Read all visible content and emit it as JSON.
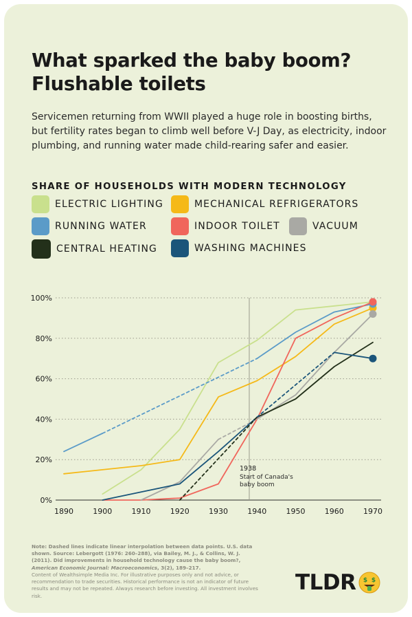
{
  "title": "What sparked the baby boom? Flushable toilets",
  "subtitle": "Servicemen returning from WWII played a huge role in boosting births, but fertility rates began to climb well before V-J Day, as electricity, indoor plumbing, and running water made child-rearing safer and easier.",
  "legend_title": "SHARE OF HOUSEHOLDS WITH MODERN TECHNOLOGY",
  "colors": {
    "electric_lighting": "#c9e08d",
    "mechanical_refrigerators": "#f5b918",
    "running_water": "#5b9bc8",
    "indoor_toilet": "#f0665c",
    "vacuum": "#a9a9a4",
    "central_heating": "#23301a",
    "washing_machines": "#1b557a",
    "background": "#ecf1da"
  },
  "chart_data": {
    "type": "line",
    "xlim": [
      1890,
      1970
    ],
    "ylim": [
      0,
      100
    ],
    "x_ticks": [
      "1890",
      "1900",
      "1910",
      "1920",
      "1930",
      "1940",
      "1950",
      "1960",
      "1970"
    ],
    "y_ticks": [
      "0%",
      "20%",
      "40%",
      "60%",
      "80%",
      "100%"
    ],
    "grid": "horizontal dotted",
    "reference_line": {
      "x": 1938,
      "label_year": "1938",
      "label_text": "Start of Canada's baby boom"
    },
    "series": [
      {
        "name": "ELECTRIC LIGHTING",
        "color_key": "electric_lighting",
        "segments": [
          {
            "style": "solid",
            "points": [
              [
                1900,
                3
              ],
              [
                1910,
                15
              ],
              [
                1920,
                35
              ],
              [
                1930,
                68
              ],
              [
                1940,
                79
              ],
              [
                1950,
                94
              ],
              [
                1960,
                96
              ],
              [
                1970,
                98
              ]
            ]
          }
        ]
      },
      {
        "name": "MECHANICAL REFRIGERATORS",
        "color_key": "mechanical_refrigerators",
        "segments": [
          {
            "style": "solid",
            "points": [
              [
                1890,
                13
              ],
              [
                1900,
                15
              ],
              [
                1910,
                17
              ],
              [
                1920,
                20
              ],
              [
                1930,
                51
              ],
              [
                1940,
                59
              ],
              [
                1950,
                71
              ],
              [
                1960,
                87
              ],
              [
                1970,
                95
              ]
            ]
          }
        ],
        "end_marker": [
          1970,
          95
        ]
      },
      {
        "name": "RUNNING WATER",
        "color_key": "running_water",
        "segments": [
          {
            "style": "solid",
            "points": [
              [
                1890,
                24
              ],
              [
                1900,
                33
              ]
            ]
          },
          {
            "style": "dashed",
            "points": [
              [
                1900,
                33
              ],
              [
                1940,
                70
              ]
            ]
          },
          {
            "style": "solid",
            "points": [
              [
                1940,
                70
              ],
              [
                1950,
                83
              ],
              [
                1960,
                93
              ],
              [
                1970,
                97
              ]
            ]
          }
        ],
        "end_marker": [
          1970,
          97
        ]
      },
      {
        "name": "INDOOR TOILET",
        "color_key": "indoor_toilet",
        "segments": [
          {
            "style": "solid",
            "points": [
              [
                1900,
                0
              ],
              [
                1910,
                0
              ],
              [
                1920,
                1
              ],
              [
                1930,
                8
              ],
              [
                1940,
                40
              ],
              [
                1950,
                80
              ],
              [
                1960,
                90
              ],
              [
                1970,
                98
              ]
            ]
          }
        ],
        "end_marker": [
          1970,
          98
        ]
      },
      {
        "name": "VACUUM",
        "color_key": "vacuum",
        "segments": [
          {
            "style": "solid",
            "points": [
              [
                1910,
                0
              ],
              [
                1920,
                9
              ],
              [
                1930,
                30
              ]
            ]
          },
          {
            "style": "dashed",
            "points": [
              [
                1930,
                30
              ],
              [
                1940,
                40
              ]
            ]
          },
          {
            "style": "solid",
            "points": [
              [
                1940,
                40
              ],
              [
                1950,
                52
              ],
              [
                1960,
                73
              ],
              [
                1970,
                92
              ]
            ]
          }
        ],
        "end_marker": [
          1970,
          92
        ]
      },
      {
        "name": "CENTRAL HEATING",
        "color_key": "central_heating",
        "segments": [
          {
            "style": "solid",
            "points": [
              [
                1940,
                41
              ],
              [
                1950,
                50
              ],
              [
                1960,
                66
              ],
              [
                1970,
                78
              ]
            ]
          }
        ]
      },
      {
        "name": "WASHING MACHINES",
        "color_key": "washing_machines",
        "segments": [
          {
            "style": "solid",
            "points": [
              [
                1900,
                0
              ],
              [
                1910,
                4
              ],
              [
                1920,
                8
              ],
              [
                1930,
                24
              ],
              [
                1940,
                41
              ]
            ]
          },
          {
            "style": "dashed",
            "points": [
              [
                1940,
                41
              ],
              [
                1960,
                73
              ]
            ]
          },
          {
            "style": "solid",
            "points": [
              [
                1960,
                73
              ],
              [
                1970,
                70
              ]
            ]
          }
        ],
        "end_marker": [
          1970,
          70
        ]
      },
      {
        "name": "Black dashed interpolation",
        "color_key": "central_heating",
        "segments": [
          {
            "style": "dashed",
            "points": [
              [
                1920,
                0
              ],
              [
                1940,
                41
              ]
            ]
          }
        ]
      }
    ]
  },
  "legend": [
    {
      "label": "ELECTRIC LIGHTING",
      "color_key": "electric_lighting"
    },
    {
      "label": "MECHANICAL REFRIGERATORS",
      "color_key": "mechanical_refrigerators"
    },
    {
      "label": "RUNNING WATER",
      "color_key": "running_water"
    },
    {
      "label": "INDOOR TOILET",
      "color_key": "indoor_toilet"
    },
    {
      "label": "VACUUM",
      "color_key": "vacuum"
    },
    {
      "label": "CENTRAL HEATING",
      "color_key": "central_heating"
    },
    {
      "label": "WASHING MACHINES",
      "color_key": "washing_machines"
    }
  ],
  "note": {
    "line1": "Note: Dashed lines indicate linear interpolation between data points. U.S. data shown. Source: Lebergott (1976: 260–288), via Bailey, M. J., & Collins, W. J. (2011). Did improvements in household technology cause the baby boom?, ",
    "journal": "American Economic Journal: Macroeconomics",
    "line1_end": ", 3(2), 189–217.",
    "disclaimer": "Content of Wealthsimple Media Inc. For illustrative purposes only and not advice, or recommendation to trade securities. Historical performance is not an indicator of future results and may not be repeated. Always research before investing. All investment involves risk."
  },
  "logo": {
    "text": "TLDR",
    "icon": "money-face-emoji-icon"
  }
}
